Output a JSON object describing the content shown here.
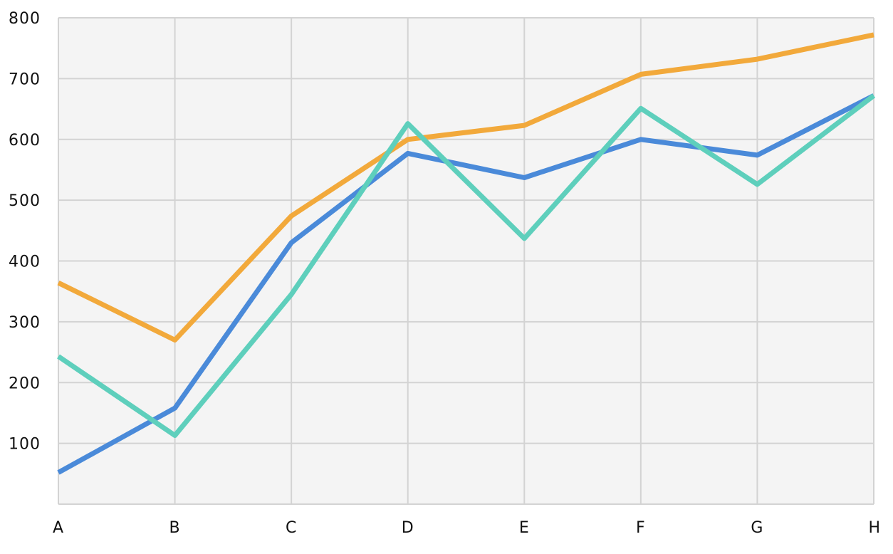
{
  "chart_data": {
    "type": "line",
    "title": "",
    "xlabel": "",
    "ylabel": "",
    "categories": [
      "A",
      "B",
      "C",
      "D",
      "E",
      "F",
      "G",
      "H"
    ],
    "ylim": [
      0,
      800
    ],
    "yticks": [
      100,
      200,
      300,
      400,
      500,
      600,
      700,
      800
    ],
    "ytick_labels": [
      "100",
      "200",
      "300",
      "400",
      "500",
      "600",
      "700",
      "800"
    ],
    "grid": true,
    "legend": "none",
    "series": [
      {
        "color": "#f2a93b",
        "values": [
          364,
          270,
          474,
          600,
          623,
          707,
          732,
          772
        ]
      },
      {
        "color": "#4a8ad9",
        "values": [
          52,
          158,
          430,
          577,
          537,
          600,
          574,
          672
        ]
      },
      {
        "color": "#5ecfbc",
        "values": [
          243,
          113,
          345,
          626,
          437,
          651,
          526,
          672
        ]
      }
    ]
  }
}
